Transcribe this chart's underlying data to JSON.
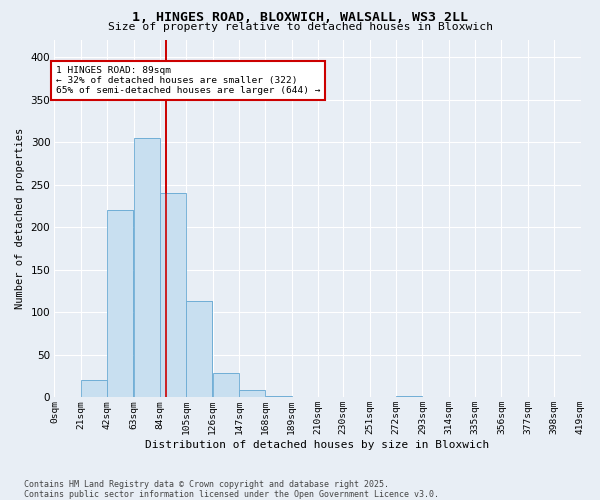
{
  "title1": "1, HINGES ROAD, BLOXWICH, WALSALL, WS3 2LL",
  "title2": "Size of property relative to detached houses in Bloxwich",
  "xlabel": "Distribution of detached houses by size in Bloxwich",
  "ylabel": "Number of detached properties",
  "bin_edges": [
    0,
    21,
    42,
    63,
    84,
    105,
    126,
    147,
    168,
    189,
    210,
    230,
    251,
    272,
    293,
    314,
    335,
    356,
    377,
    398,
    419
  ],
  "bin_labels": [
    "0sqm",
    "21sqm",
    "42sqm",
    "63sqm",
    "84sqm",
    "105sqm",
    "126sqm",
    "147sqm",
    "168sqm",
    "189sqm",
    "210sqm",
    "230sqm",
    "251sqm",
    "272sqm",
    "293sqm",
    "314sqm",
    "335sqm",
    "356sqm",
    "377sqm",
    "398sqm",
    "419sqm"
  ],
  "counts": [
    0,
    20,
    220,
    305,
    240,
    113,
    28,
    8,
    1,
    0,
    0,
    0,
    0,
    1,
    0,
    0,
    0,
    0,
    0,
    0
  ],
  "bar_color": "#c8dff0",
  "bar_edge_color": "#6aaad4",
  "vertical_line_x": 89,
  "vertical_line_color": "#cc0000",
  "ylim": [
    0,
    420
  ],
  "yticks": [
    0,
    50,
    100,
    150,
    200,
    250,
    300,
    350,
    400
  ],
  "annotation_text": "1 HINGES ROAD: 89sqm\n← 32% of detached houses are smaller (322)\n65% of semi-detached houses are larger (644) →",
  "annotation_box_color": "#ffffff",
  "annotation_box_edge": "#cc0000",
  "footer": "Contains HM Land Registry data © Crown copyright and database right 2025.\nContains public sector information licensed under the Open Government Licence v3.0.",
  "bg_color": "#e8eef5",
  "plot_bg_color": "#e8eef5",
  "grid_color": "#ffffff"
}
